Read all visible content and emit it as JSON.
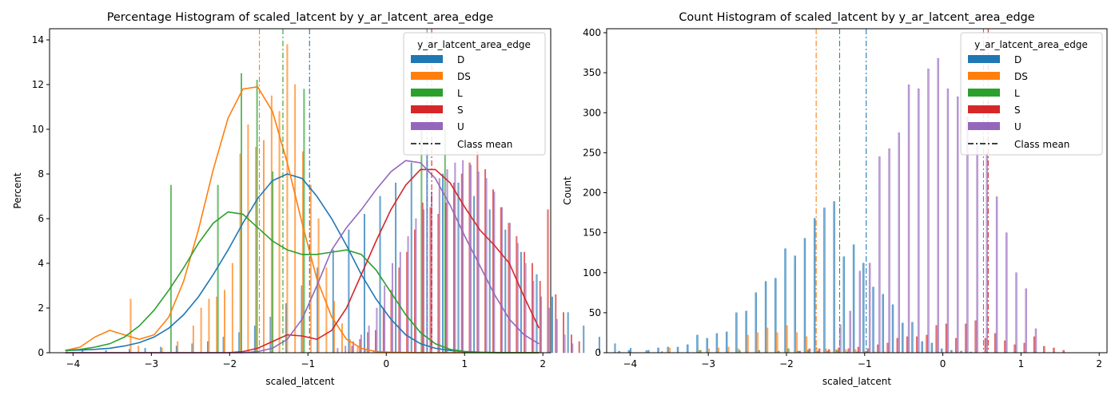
{
  "colors": {
    "D": "#1f77b4",
    "DS": "#ff7f0e",
    "L": "#2ca02c",
    "S": "#d62728",
    "U": "#9467bd",
    "axis": "#000000"
  },
  "chart_data": [
    {
      "type": "bar",
      "title": "Percentage Histogram of scaled_latcent by y_ar_latcent_area_edge",
      "xlabel": "scaled_latcent",
      "ylabel": "Percent",
      "xlim": [
        -4.3,
        2.1
      ],
      "ylim": [
        0,
        14.5
      ],
      "xticks": [
        -4,
        -3,
        -2,
        -1,
        0,
        1,
        2
      ],
      "yticks": [
        0,
        2,
        4,
        6,
        8,
        10,
        12,
        14
      ],
      "grid": false,
      "legend": {
        "title": "y_ar_latcent_area_edge",
        "location": "top-right",
        "entries": [
          "D",
          "DS",
          "L",
          "S",
          "U"
        ],
        "mean_label": "Class mean"
      },
      "bin_start": -4.05,
      "bin_width": 0.1,
      "series": [
        {
          "name": "D",
          "color": "#1f77b4",
          "mean": -0.98,
          "values": [
            0.05,
            0,
            0.1,
            0,
            0,
            0.1,
            0,
            0,
            0.15,
            0,
            0.2,
            0,
            0.25,
            0,
            0.3,
            0,
            0.4,
            0,
            0.5,
            0,
            0.7,
            0,
            0.9,
            0,
            1.2,
            0,
            1.6,
            0,
            2.2,
            0,
            3,
            0,
            3.8,
            0,
            4.6,
            0,
            5.5,
            0,
            6.2,
            0,
            7,
            0,
            7.6,
            0,
            8.5,
            0,
            8.9,
            0,
            8,
            0,
            7.6,
            0,
            7,
            0,
            6.4,
            0,
            5.5,
            0,
            4.5,
            0,
            3.5,
            0,
            2.5,
            0,
            1.8,
            0,
            1.2,
            0,
            0.7,
            0,
            0.4,
            0,
            0.2,
            0,
            0.1,
            0,
            0.05,
            0,
            0,
            0,
            0,
            0
          ],
          "kde": [
            0.1,
            0.12,
            0.15,
            0.2,
            0.3,
            0.45,
            0.7,
            1.1,
            1.7,
            2.5,
            3.5,
            4.6,
            5.8,
            6.9,
            7.7,
            8.0,
            7.8,
            7.0,
            6.0,
            4.8,
            3.5,
            2.4,
            1.5,
            0.8,
            0.4,
            0.2,
            0.1,
            0.05,
            0.02,
            0.01,
            0,
            0,
            0
          ]
        },
        {
          "name": "DS",
          "color": "#ff7f0e",
          "mean": -1.62,
          "values": [
            0,
            0,
            0,
            0,
            0,
            0,
            0,
            0,
            2.4,
            0.3,
            0,
            0,
            0.2,
            0,
            0.5,
            0,
            1.2,
            2,
            2.4,
            2.5,
            2.8,
            4,
            8.9,
            10.2,
            9.2,
            9.5,
            11.5,
            10.8,
            13.8,
            12,
            9,
            7.5,
            6,
            3.8,
            2.3,
            1.3,
            0.6,
            0.3,
            0.15,
            0.1,
            0.05,
            0,
            0,
            0,
            0,
            0,
            0,
            0,
            0,
            0,
            0,
            0,
            0,
            0,
            0,
            0,
            0,
            0,
            0,
            0,
            0,
            0,
            0,
            0
          ],
          "kde": [
            0.1,
            0.25,
            0.7,
            1.0,
            0.8,
            0.6,
            0.8,
            1.6,
            3.2,
            5.5,
            8.2,
            10.5,
            11.8,
            11.9,
            10.8,
            8.5,
            5.8,
            3.3,
            1.6,
            0.6,
            0.2,
            0.05,
            0.02,
            0.01,
            0,
            0,
            0,
            0,
            0,
            0,
            0,
            0,
            0
          ]
        },
        {
          "name": "L",
          "color": "#2ca02c",
          "mean": -1.32,
          "values": [
            0,
            0,
            0,
            0,
            0,
            0,
            0,
            0,
            0,
            0,
            0,
            0,
            0,
            7.5,
            0,
            0,
            0,
            0,
            0,
            7.5,
            0,
            0,
            12.5,
            0,
            12.2,
            0,
            8.1,
            0,
            0,
            0,
            11.8,
            0,
            0,
            0,
            0,
            0,
            0,
            0,
            0,
            0,
            0,
            0,
            0,
            0,
            0,
            10,
            0,
            0,
            10,
            0,
            0,
            0,
            0,
            0,
            0,
            0,
            0,
            0,
            0,
            0,
            0,
            0,
            0,
            0
          ],
          "kde": [
            0.1,
            0.15,
            0.25,
            0.4,
            0.7,
            1.2,
            1.9,
            2.8,
            3.8,
            4.9,
            5.8,
            6.3,
            6.2,
            5.6,
            5.0,
            4.6,
            4.4,
            4.4,
            4.5,
            4.6,
            4.4,
            3.7,
            2.7,
            1.7,
            0.9,
            0.4,
            0.15,
            0.05,
            0.02,
            0,
            0,
            0,
            0
          ]
        },
        {
          "name": "S",
          "color": "#d62728",
          "mean": 0.58,
          "values": [
            0,
            0,
            0,
            0,
            0,
            0,
            0,
            0,
            0,
            0,
            0,
            0,
            0,
            0,
            0,
            0,
            0,
            0,
            0,
            0,
            0,
            0,
            0,
            0,
            0,
            0,
            0,
            0,
            0,
            0,
            0,
            0,
            0,
            0,
            0,
            0,
            0.3,
            0.6,
            0.9,
            1,
            2,
            2.8,
            3.8,
            4.5,
            5.5,
            6.7,
            6.5,
            6.2,
            6.7,
            7.6,
            8,
            8.5,
            9,
            8.2,
            7.3,
            6.5,
            5.8,
            5.2,
            4.5,
            4,
            3.2,
            6.4,
            2.6,
            1.8,
            0.8,
            0.5
          ],
          "kde": [
            0,
            0,
            0,
            0,
            0,
            0,
            0,
            0,
            0,
            0,
            0,
            0,
            0.05,
            0.2,
            0.5,
            0.8,
            0.75,
            0.6,
            1.0,
            2.0,
            3.5,
            5.0,
            6.4,
            7.5,
            8.2,
            8.2,
            7.6,
            6.5,
            5.5,
            4.8,
            4.0,
            2.5,
            1.1
          ]
        },
        {
          "name": "U",
          "color": "#9467bd",
          "mean": 0.52,
          "values": [
            0,
            0,
            0,
            0,
            0,
            0,
            0,
            0,
            0,
            0,
            0,
            0,
            0,
            0,
            0,
            0,
            0,
            0,
            0,
            0,
            0,
            0,
            0,
            0,
            0,
            0,
            0,
            0,
            0,
            0,
            0,
            0,
            0,
            0,
            0.2,
            0.3,
            0.5,
            0.8,
            1.2,
            2,
            3,
            4,
            4.5,
            5.2,
            6,
            6.4,
            7.2,
            7.8,
            8.2,
            8.5,
            8.6,
            8.4,
            8.1,
            7.8,
            7.2,
            6.5,
            5.8,
            4.9,
            4,
            3.2,
            2.5,
            2,
            1.5,
            0.8,
            0.4
          ],
          "kde": [
            0,
            0,
            0,
            0,
            0,
            0,
            0,
            0,
            0,
            0,
            0,
            0,
            0,
            0.05,
            0.2,
            0.6,
            1.5,
            3.0,
            4.6,
            5.6,
            6.4,
            7.3,
            8.1,
            8.6,
            8.5,
            7.8,
            6.6,
            5.2,
            3.9,
            2.6,
            1.5,
            0.8,
            0.4
          ]
        }
      ]
    },
    {
      "type": "bar",
      "title": "Count Histogram of scaled_latcent by y_ar_latcent_area_edge",
      "xlabel": "scaled_latcent",
      "ylabel": "Count",
      "xlim": [
        -4.3,
        2.1
      ],
      "ylim": [
        0,
        405
      ],
      "xticks": [
        -4,
        -3,
        -2,
        -1,
        0,
        1,
        2
      ],
      "yticks": [
        0,
        50,
        100,
        150,
        200,
        250,
        300,
        350,
        400
      ],
      "grid": false,
      "legend": {
        "title": "y_ar_latcent_area_edge",
        "location": "top-right",
        "entries": [
          "D",
          "DS",
          "L",
          "S",
          "U"
        ],
        "mean_label": "Class mean"
      },
      "bin_start": -4.1,
      "bin_width": 0.125,
      "series": [
        {
          "name": "D",
          "color": "#1f77b4",
          "mean": -0.98,
          "values": [
            2,
            3,
            0,
            3,
            6,
            7,
            7,
            10,
            22,
            18,
            24,
            26,
            50,
            52,
            75,
            89,
            93,
            130,
            121,
            143,
            168,
            181,
            189,
            120,
            135,
            112,
            82,
            73,
            60,
            37,
            38,
            14,
            12,
            5,
            3,
            2,
            1,
            0,
            0,
            0,
            0,
            0,
            0,
            0,
            0,
            0,
            0,
            0,
            0,
            0
          ]
        },
        {
          "name": "DS",
          "color": "#ff7f0e",
          "mean": -1.62,
          "values": [
            0,
            0,
            0,
            0,
            0,
            6,
            0,
            0,
            3,
            5,
            6,
            7,
            5,
            22,
            25,
            31,
            25,
            34,
            25,
            20,
            7,
            5,
            4,
            4,
            4,
            2,
            1,
            1,
            0,
            0,
            0,
            0,
            0,
            0,
            0,
            0,
            0,
            0,
            0,
            0,
            0,
            0,
            0,
            0,
            0,
            0,
            0,
            0,
            0,
            0
          ]
        },
        {
          "name": "L",
          "color": "#2ca02c",
          "mean": -1.32,
          "values": [
            0,
            0,
            0,
            0,
            0,
            0,
            0,
            0,
            3,
            0,
            0,
            0,
            3,
            0,
            3,
            0,
            2,
            5,
            2,
            3,
            2,
            2,
            3,
            1,
            1,
            2,
            0,
            0,
            0,
            0,
            0,
            0,
            0,
            0,
            0,
            0,
            0,
            0,
            0,
            0,
            0,
            0,
            0,
            0,
            0,
            0,
            0,
            0,
            0,
            0
          ]
        },
        {
          "name": "S",
          "color": "#d62728",
          "mean": 0.58,
          "values": [
            0,
            0,
            0,
            0,
            0,
            0,
            0,
            0,
            0,
            0,
            0,
            0,
            0,
            0,
            0,
            0,
            0,
            0,
            2,
            5,
            5,
            4,
            6,
            5,
            7,
            5,
            10,
            12,
            18,
            20,
            20,
            22,
            34,
            36,
            18,
            36,
            40,
            18,
            24,
            15,
            10,
            12,
            20,
            8,
            6,
            3,
            0,
            0,
            0,
            0
          ]
        },
        {
          "name": "U",
          "color": "#9467bd",
          "mean": 0.52,
          "values": [
            0,
            0,
            0,
            0,
            0,
            0,
            0,
            0,
            0,
            0,
            0,
            0,
            0,
            0,
            0,
            0,
            0,
            0,
            0,
            0,
            0,
            0,
            35,
            52,
            102,
            112,
            245,
            255,
            275,
            335,
            330,
            355,
            368,
            330,
            320,
            295,
            260,
            250,
            195,
            150,
            100,
            80,
            30,
            0,
            0,
            0,
            0,
            0,
            0,
            0
          ]
        }
      ]
    }
  ]
}
